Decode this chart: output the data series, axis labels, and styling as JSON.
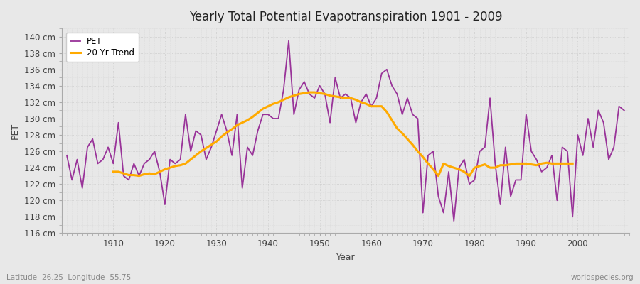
{
  "title": "Yearly Total Potential Evapotranspiration 1901 - 2009",
  "xlabel": "Year",
  "ylabel": "PET",
  "footnote_left": "Latitude -26.25  Longitude -55.75",
  "footnote_right": "worldspecies.org",
  "pet_color": "#993399",
  "trend_color": "#ffaa00",
  "fig_bg_color": "#e8e8e8",
  "plot_bg_color": "#e8e8e8",
  "ylim": [
    116,
    141
  ],
  "xlim": [
    1900,
    2010
  ],
  "ytick_step": 2,
  "years": [
    1901,
    1902,
    1903,
    1904,
    1905,
    1906,
    1907,
    1908,
    1909,
    1910,
    1911,
    1912,
    1913,
    1914,
    1915,
    1916,
    1917,
    1918,
    1919,
    1920,
    1921,
    1922,
    1923,
    1924,
    1925,
    1926,
    1927,
    1928,
    1929,
    1930,
    1931,
    1932,
    1933,
    1934,
    1935,
    1936,
    1937,
    1938,
    1939,
    1940,
    1941,
    1942,
    1943,
    1944,
    1945,
    1946,
    1947,
    1948,
    1949,
    1950,
    1951,
    1952,
    1953,
    1954,
    1955,
    1956,
    1957,
    1958,
    1959,
    1960,
    1961,
    1962,
    1963,
    1964,
    1965,
    1966,
    1967,
    1968,
    1969,
    1970,
    1971,
    1972,
    1973,
    1974,
    1975,
    1976,
    1977,
    1978,
    1979,
    1980,
    1981,
    1982,
    1983,
    1984,
    1985,
    1986,
    1987,
    1988,
    1989,
    1990,
    1991,
    1992,
    1993,
    1994,
    1995,
    1996,
    1997,
    1998,
    1999,
    2000,
    2001,
    2002,
    2003,
    2004,
    2005,
    2006,
    2007,
    2008,
    2009
  ],
  "pet_values": [
    125.5,
    122.5,
    125.0,
    121.5,
    126.5,
    127.5,
    124.5,
    125.0,
    126.5,
    124.5,
    129.5,
    123.0,
    122.5,
    124.5,
    123.0,
    124.5,
    125.0,
    126.0,
    123.5,
    119.5,
    125.0,
    124.5,
    125.0,
    130.5,
    126.0,
    128.5,
    128.0,
    125.0,
    126.5,
    128.5,
    130.5,
    128.5,
    125.5,
    130.5,
    121.5,
    126.5,
    125.5,
    128.5,
    130.5,
    130.5,
    130.0,
    130.0,
    133.5,
    139.5,
    130.5,
    133.5,
    134.5,
    133.0,
    132.5,
    134.0,
    133.0,
    129.5,
    135.0,
    132.5,
    133.0,
    132.5,
    129.5,
    132.0,
    133.0,
    131.5,
    132.5,
    135.5,
    136.0,
    134.0,
    133.0,
    130.5,
    132.5,
    130.5,
    130.0,
    118.5,
    125.5,
    126.0,
    120.5,
    118.5,
    123.5,
    117.5,
    124.0,
    125.0,
    122.0,
    122.5,
    126.0,
    126.5,
    132.5,
    124.5,
    119.5,
    126.5,
    120.5,
    122.5,
    122.5,
    130.5,
    126.0,
    125.0,
    123.5,
    124.0,
    125.5,
    120.0,
    126.5,
    126.0,
    118.0,
    128.0,
    125.5,
    130.0,
    126.5,
    131.0,
    129.5,
    125.0,
    126.5,
    131.5,
    131.0
  ],
  "trend_values": [
    null,
    null,
    null,
    null,
    null,
    null,
    null,
    null,
    null,
    123.5,
    123.5,
    123.3,
    123.1,
    123.1,
    123.0,
    123.2,
    123.3,
    123.2,
    123.5,
    123.8,
    124.0,
    124.2,
    124.3,
    124.5,
    125.0,
    125.5,
    126.0,
    126.4,
    126.8,
    127.2,
    127.8,
    128.3,
    128.7,
    129.2,
    129.5,
    129.8,
    130.2,
    130.7,
    131.2,
    131.5,
    131.8,
    132.0,
    132.3,
    132.6,
    132.8,
    133.0,
    133.1,
    133.2,
    133.2,
    133.1,
    133.0,
    132.8,
    132.7,
    132.6,
    132.5,
    132.5,
    132.3,
    132.0,
    131.8,
    131.5,
    131.5,
    131.5,
    130.8,
    129.8,
    128.8,
    128.2,
    127.5,
    126.8,
    126.0,
    125.3,
    124.5,
    123.8,
    123.0,
    124.5,
    124.2,
    124.0,
    123.8,
    123.5,
    123.0,
    124.0,
    124.2,
    124.4,
    124.0,
    124.0,
    124.3,
    124.3,
    124.4,
    124.5,
    124.5,
    124.5,
    124.4,
    124.3,
    124.5,
    124.6,
    124.5,
    124.5,
    124.5,
    124.5,
    124.5,
    null,
    null,
    null,
    null,
    null,
    null,
    null,
    null,
    null
  ]
}
